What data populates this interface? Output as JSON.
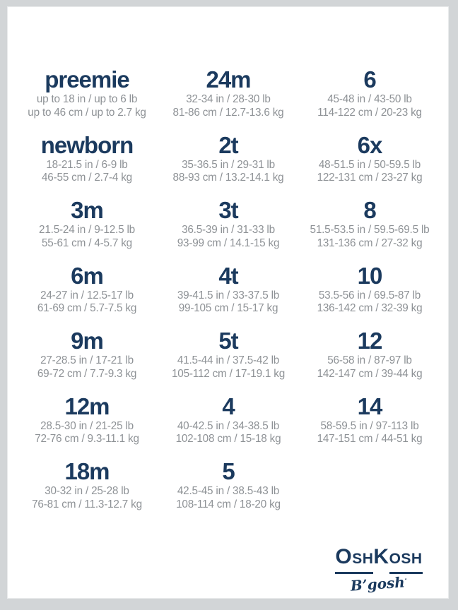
{
  "colors": {
    "navy": "#1b3a5e",
    "gray_text": "#8e9296",
    "frame_gray": "#d2d5d7",
    "panel_bg": "#ffffff"
  },
  "brand": {
    "part_o": "O",
    "part_sh": "SH",
    "part_k": "K",
    "part_osh": "OSH",
    "sub": "B’gosh",
    "tm": "·"
  },
  "size_chart": {
    "columns": [
      {
        "cells": [
          {
            "label": "preemie",
            "imperial": "up to 18 in / up to 6 lb",
            "metric": "up to 46 cm / up to 2.7 kg"
          },
          {
            "label": "newborn",
            "imperial": "18-21.5 in / 6-9 lb",
            "metric": "46-55 cm / 2.7-4 kg"
          },
          {
            "label": "3m",
            "imperial": "21.5-24 in / 9-12.5 lb",
            "metric": "55-61 cm / 4-5.7 kg"
          },
          {
            "label": "6m",
            "imperial": "24-27 in / 12.5-17 lb",
            "metric": "61-69 cm / 5.7-7.5 kg"
          },
          {
            "label": "9m",
            "imperial": "27-28.5 in / 17-21 lb",
            "metric": "69-72 cm / 7.7-9.3 kg"
          },
          {
            "label": "12m",
            "imperial": "28.5-30 in / 21-25 lb",
            "metric": "72-76 cm / 9.3-11.1 kg"
          },
          {
            "label": "18m",
            "imperial": "30-32 in / 25-28 lb",
            "metric": "76-81 cm / 11.3-12.7 kg"
          }
        ]
      },
      {
        "cells": [
          {
            "label": "24m",
            "imperial": "32-34 in / 28-30 lb",
            "metric": "81-86 cm / 12.7-13.6 kg"
          },
          {
            "label": "2t",
            "imperial": "35-36.5 in / 29-31 lb",
            "metric": "88-93 cm / 13.2-14.1 kg"
          },
          {
            "label": "3t",
            "imperial": "36.5-39 in / 31-33 lb",
            "metric": "93-99 cm / 14.1-15 kg"
          },
          {
            "label": "4t",
            "imperial": "39-41.5 in / 33-37.5 lb",
            "metric": "99-105 cm / 15-17 kg"
          },
          {
            "label": "5t",
            "imperial": "41.5-44 in / 37.5-42 lb",
            "metric": "105-112 cm / 17-19.1 kg"
          },
          {
            "label": "4",
            "imperial": "40-42.5 in / 34-38.5 lb",
            "metric": "102-108 cm / 15-18 kg"
          },
          {
            "label": "5",
            "imperial": "42.5-45 in / 38.5-43 lb",
            "metric": "108-114 cm / 18-20 kg"
          }
        ]
      },
      {
        "cells": [
          {
            "label": "6",
            "imperial": "45-48 in / 43-50 lb",
            "metric": "114-122 cm / 20-23 kg"
          },
          {
            "label": "6x",
            "imperial": "48-51.5 in / 50-59.5 lb",
            "metric": "122-131 cm / 23-27 kg"
          },
          {
            "label": "8",
            "imperial": "51.5-53.5 in / 59.5-69.5 lb",
            "metric": "131-136 cm / 27-32 kg"
          },
          {
            "label": "10",
            "imperial": "53.5-56 in / 69.5-87 lb",
            "metric": "136-142 cm / 32-39 kg"
          },
          {
            "label": "12",
            "imperial": "56-58 in / 87-97 lb",
            "metric": "142-147 cm / 39-44 kg"
          },
          {
            "label": "14",
            "imperial": "58-59.5 in / 97-113 lb",
            "metric": "147-151 cm / 44-51 kg"
          }
        ]
      }
    ]
  },
  "chart_data": {
    "type": "table",
    "title": "OshKosh B'gosh children's size chart",
    "columns": [
      "size",
      "height_weight_imperial",
      "height_weight_metric"
    ],
    "rows": [
      [
        "preemie",
        "up to 18 in / up to 6 lb",
        "up to 46 cm / up to 2.7 kg"
      ],
      [
        "newborn",
        "18-21.5 in / 6-9 lb",
        "46-55 cm / 2.7-4 kg"
      ],
      [
        "3m",
        "21.5-24 in / 9-12.5 lb",
        "55-61 cm / 4-5.7 kg"
      ],
      [
        "6m",
        "24-27 in / 12.5-17 lb",
        "61-69 cm / 5.7-7.5 kg"
      ],
      [
        "9m",
        "27-28.5 in / 17-21 lb",
        "69-72 cm / 7.7-9.3 kg"
      ],
      [
        "12m",
        "28.5-30 in / 21-25 lb",
        "72-76 cm / 9.3-11.1 kg"
      ],
      [
        "18m",
        "30-32 in / 25-28 lb",
        "76-81 cm / 11.3-12.7 kg"
      ],
      [
        "24m",
        "32-34 in / 28-30 lb",
        "81-86 cm / 12.7-13.6 kg"
      ],
      [
        "2t",
        "35-36.5 in / 29-31 lb",
        "88-93 cm / 13.2-14.1 kg"
      ],
      [
        "3t",
        "36.5-39 in / 31-33 lb",
        "93-99 cm / 14.1-15 kg"
      ],
      [
        "4t",
        "39-41.5 in / 33-37.5 lb",
        "99-105 cm / 15-17 kg"
      ],
      [
        "5t",
        "41.5-44 in / 37.5-42 lb",
        "105-112 cm / 17-19.1 kg"
      ],
      [
        "4",
        "40-42.5 in / 34-38.5 lb",
        "102-108 cm / 15-18 kg"
      ],
      [
        "5",
        "42.5-45 in / 38.5-43 lb",
        "108-114 cm / 18-20 kg"
      ],
      [
        "6",
        "45-48 in / 43-50 lb",
        "114-122 cm / 20-23 kg"
      ],
      [
        "6x",
        "48-51.5 in / 50-59.5 lb",
        "122-131 cm / 23-27 kg"
      ],
      [
        "8",
        "51.5-53.5 in / 59.5-69.5 lb",
        "131-136 cm / 27-32 kg"
      ],
      [
        "10",
        "53.5-56 in / 69.5-87 lb",
        "136-142 cm / 32-39 kg"
      ],
      [
        "12",
        "56-58 in / 87-97 lb",
        "142-147 cm / 39-44 kg"
      ],
      [
        "14",
        "58-59.5 in / 97-113 lb",
        "147-151 cm / 44-51 kg"
      ]
    ]
  }
}
